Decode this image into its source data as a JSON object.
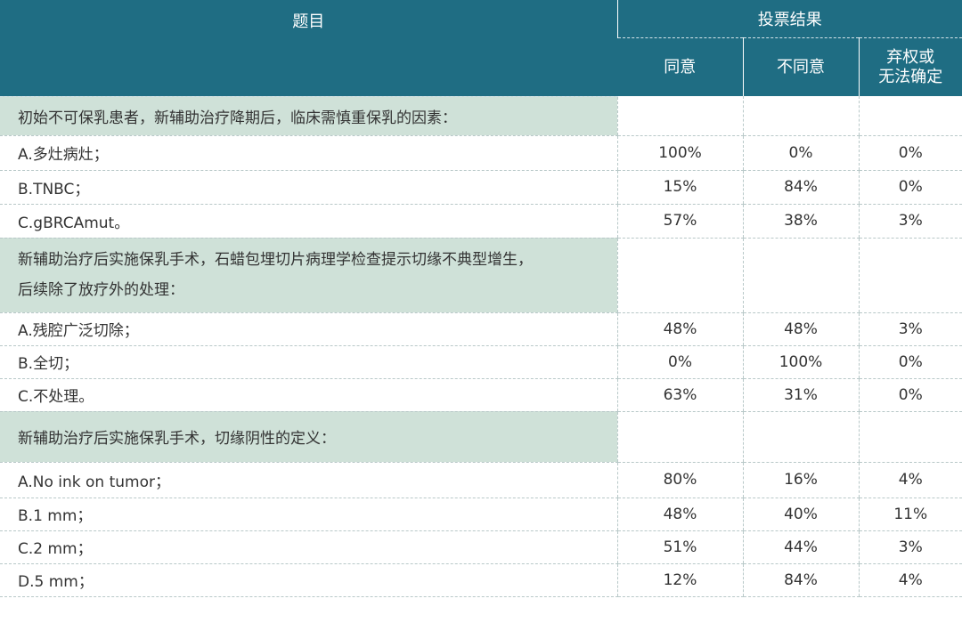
{
  "header": {
    "topic_label": "题目",
    "results_label": "投票结果",
    "col_agree": "同意",
    "col_disagree": "不同意",
    "col_abstain_line1": "弃权或",
    "col_abstain_line2": "无法确定"
  },
  "sections": [
    {
      "question": "初始不可保乳患者，新辅助治疗降期后，临床需慎重保乳的因素：",
      "options": [
        {
          "label": "A.多灶病灶；",
          "agree": "100%",
          "disagree": "0%",
          "abstain": "0%"
        },
        {
          "label": "B.TNBC；",
          "agree": "15%",
          "disagree": "84%",
          "abstain": "0%"
        },
        {
          "label": "C.gBRCAmut。",
          "agree": "57%",
          "disagree": "38%",
          "abstain": "3%"
        }
      ]
    },
    {
      "question_line1": "新辅助治疗后实施保乳手术，石蜡包埋切片病理学检查提示切缘不典型增生，",
      "question_line2": "后续除了放疗外的处理：",
      "options": [
        {
          "label": "A.残腔广泛切除；",
          "agree": "48%",
          "disagree": "48%",
          "abstain": "3%"
        },
        {
          "label": "B.全切；",
          "agree": "0%",
          "disagree": "100%",
          "abstain": "0%"
        },
        {
          "label": "C.不处理。",
          "agree": "63%",
          "disagree": "31%",
          "abstain": "0%"
        }
      ]
    },
    {
      "question": "新辅助治疗后实施保乳手术，切缘阴性的定义：",
      "options": [
        {
          "label": "A.No ink on tumor；",
          "agree": "80%",
          "disagree": "16%",
          "abstain": "4%"
        },
        {
          "label": "B.1 mm；",
          "agree": "48%",
          "disagree": "40%",
          "abstain": "11%"
        },
        {
          "label": "C.2 mm；",
          "agree": "51%",
          "disagree": "44%",
          "abstain": "3%"
        },
        {
          "label": "D.5 mm；",
          "agree": "12%",
          "disagree": "84%",
          "abstain": "4%"
        }
      ]
    }
  ],
  "colors": {
    "header_bg": "#1f6d83",
    "question_bg": "#cfe1d8"
  }
}
